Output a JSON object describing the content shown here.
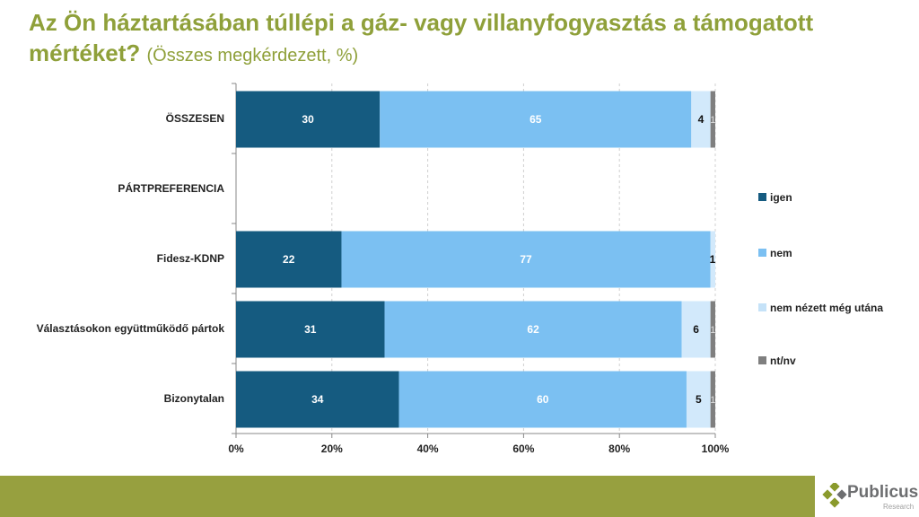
{
  "chart_data": {
    "type": "bar",
    "stacked": true,
    "orientation": "horizontal",
    "title": "Az Ön háztartásában túllépi a gáz- vagy villanyfogyasztás a támogatott mértéket?",
    "subtitle": "(Összes megkérdezett, %)",
    "categories": [
      "ÖSSZESEN",
      "PÁRTPREFERENCIA",
      "Fidesz-KDNP",
      "Választásokon együttműködő pártok",
      "Bizonytalan"
    ],
    "series": [
      {
        "name": "igen",
        "color": "#155b80",
        "values": [
          30,
          null,
          22,
          31,
          34
        ]
      },
      {
        "name": "nem",
        "color": "#7bc0f2",
        "values": [
          65,
          null,
          77,
          62,
          60
        ]
      },
      {
        "name": "nem nézett még utána",
        "color": "#d2e9fb",
        "values": [
          4,
          null,
          1,
          6,
          5
        ]
      },
      {
        "name": "nt/nv",
        "color": "#7f7f7f",
        "values": [
          1,
          null,
          0,
          1,
          1
        ]
      }
    ],
    "xticks": [
      "0%",
      "20%",
      "40%",
      "60%",
      "80%",
      "100%"
    ],
    "xlim": [
      0,
      100
    ],
    "grid": true,
    "legend": "right"
  },
  "logo": {
    "name": "Publicus",
    "tagline": "Research"
  }
}
